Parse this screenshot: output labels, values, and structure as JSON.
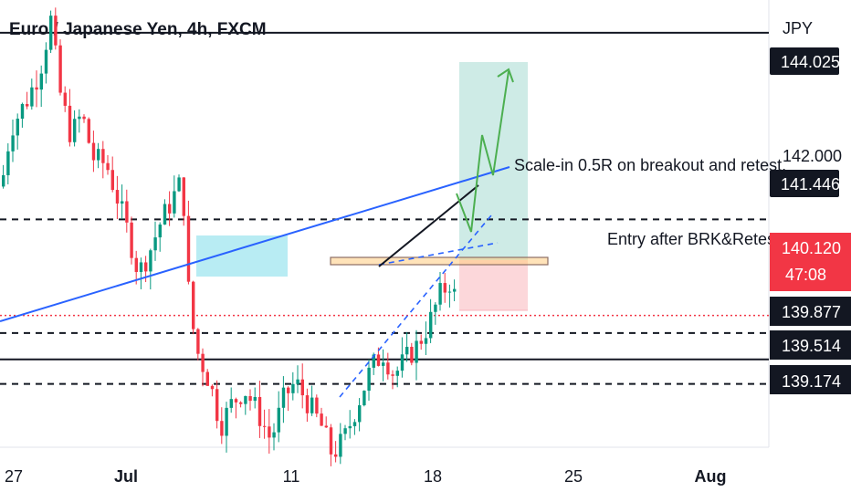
{
  "header": {
    "title": "Euro / Japanese Yen, 4h, FXCM"
  },
  "chart_data": {
    "type": "candlestick",
    "symbol": "Euro / Japanese Yen",
    "interval": "4h",
    "source": "FXCM",
    "currency_label": "JPY",
    "y_range": [
      138.3,
      144.3
    ],
    "x_ticks": [
      "27",
      "Jul",
      "11",
      "18",
      "25",
      "Aug"
    ],
    "price_ticks": [
      "142.000"
    ],
    "price_tags": [
      {
        "value": "144.025",
        "bg": "#131722"
      },
      {
        "value": "141.446",
        "bg": "#131722"
      },
      {
        "value": "140.120",
        "countdown": "47:08",
        "bg": "#f23645"
      },
      {
        "value": "139.877",
        "bg": "#131722"
      },
      {
        "value": "139.514",
        "bg": "#131722"
      },
      {
        "value": "139.174",
        "bg": "#131722"
      }
    ],
    "levels": [
      {
        "price": 144.025,
        "style": "solid"
      },
      {
        "price": 141.446,
        "style": "dashed"
      },
      {
        "price": 139.877,
        "style": "dashed"
      },
      {
        "price": 139.514,
        "style": "solid"
      },
      {
        "price": 139.174,
        "style": "dashed"
      },
      {
        "price": 140.12,
        "style": "dotted-current"
      }
    ],
    "annotations": [
      {
        "text": "Scale-in 0.5R on breakout and retest."
      },
      {
        "text": "Entry after BRK&Retest"
      }
    ],
    "colors": {
      "up": "#089981",
      "down": "#f23645",
      "trendline": "#2962ff",
      "projection": "#4caf50"
    }
  }
}
